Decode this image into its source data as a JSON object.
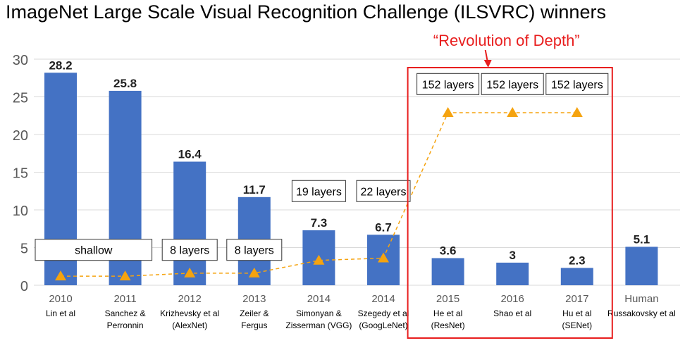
{
  "title": "ImageNet Large Scale Visual Recognition Challenge (ILSVRC) winners",
  "annotation": "“Revolution of Depth”",
  "colors": {
    "bar": "#4472c4",
    "marker": "#f5a30f",
    "highlight": "#e81e1e",
    "axis_text": "#595959",
    "grid": "#d9d9d9"
  },
  "chart_data": {
    "type": "bar",
    "title": "ImageNet Large Scale Visual Recognition Challenge (ILSVRC) winners",
    "categories": [
      {
        "year": "2010",
        "author": [
          "Lin et al"
        ]
      },
      {
        "year": "2011",
        "author": [
          "Sanchez &",
          "Perronnin"
        ]
      },
      {
        "year": "2012",
        "author": [
          "Krizhevsky et al",
          "(AlexNet)"
        ]
      },
      {
        "year": "2013",
        "author": [
          "Zeiler &",
          "Fergus"
        ]
      },
      {
        "year": "2014",
        "author": [
          "Simonyan &",
          "Zisserman (VGG)"
        ]
      },
      {
        "year": "2014",
        "author": [
          "Szegedy et al",
          "(GoogLeNet)"
        ]
      },
      {
        "year": "2015",
        "author": [
          "He et al",
          "(ResNet)"
        ]
      },
      {
        "year": "2016",
        "author": [
          "Shao et al"
        ]
      },
      {
        "year": "2017",
        "author": [
          "Hu et al",
          "(SENet)"
        ]
      },
      {
        "year": "Human",
        "author": [
          "Russakovsky et al"
        ]
      }
    ],
    "values": [
      28.2,
      25.8,
      16.4,
      11.7,
      7.3,
      6.7,
      3.6,
      3,
      2.3,
      5.1
    ],
    "value_labels": [
      "28.2",
      "25.8",
      "16.4",
      "11.7",
      "7.3",
      "6.7",
      "3.6",
      "3",
      "2.3",
      "5.1"
    ],
    "ylim": [
      0,
      30
    ],
    "yticks": [
      0,
      5,
      10,
      15,
      20,
      25,
      30
    ],
    "grid": true,
    "depth_markers": [
      {
        "index": 0,
        "value": 1.2
      },
      {
        "index": 1,
        "value": 1.2
      },
      {
        "index": 2,
        "value": 1.6
      },
      {
        "index": 3,
        "value": 1.6
      },
      {
        "index": 4,
        "value": 3.3
      },
      {
        "index": 5,
        "value": 3.6
      },
      {
        "index": 6,
        "value": 22.9
      },
      {
        "index": 7,
        "value": 22.9
      },
      {
        "index": 8,
        "value": 22.9
      }
    ],
    "depth_labels": [
      {
        "text": "shallow",
        "span": [
          0,
          1
        ],
        "value": 4.7
      },
      {
        "text": "8 layers",
        "index": 2,
        "value": 4.7
      },
      {
        "text": "8 layers",
        "index": 3,
        "value": 4.7
      },
      {
        "text": "19 layers",
        "index": 4,
        "value": 12.5
      },
      {
        "text": "22 layers",
        "index": 5,
        "value": 12.5
      },
      {
        "text": "152 layers",
        "index": 6,
        "value": 26.7
      },
      {
        "text": "152 layers",
        "index": 7,
        "value": 26.7
      },
      {
        "text": "152 layers",
        "index": 8,
        "value": 26.7
      }
    ],
    "highlight_range": [
      6,
      8
    ]
  }
}
